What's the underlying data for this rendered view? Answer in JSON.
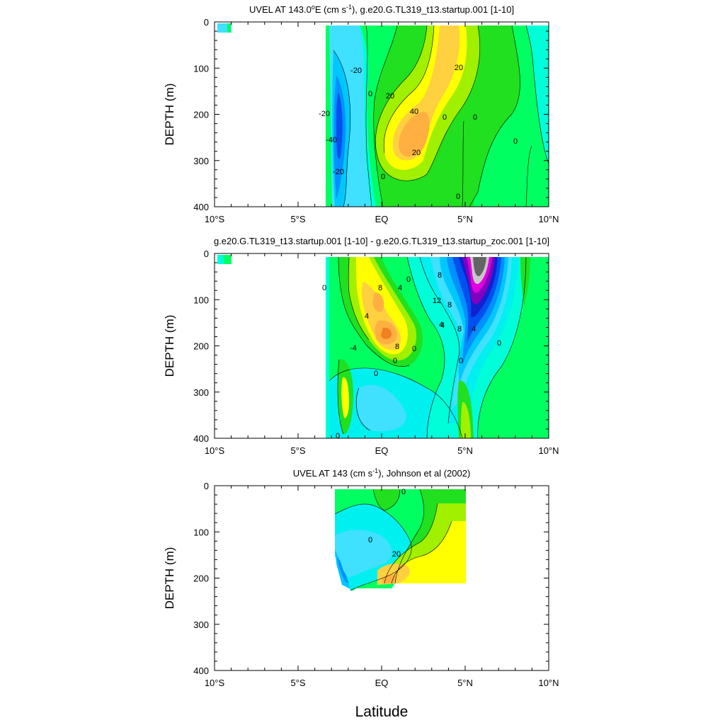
{
  "figure": {
    "xlabel": "Latitude",
    "colors": {
      "cyan_light": "#00FFD8",
      "cyan": "#00F0F0",
      "teal": "#40E0FF",
      "light_blue": "#00C8FF",
      "blue_mid": "#0090FF",
      "blue": "#0050F0",
      "blue_dark": "#1020D0",
      "purple": "#8000C0",
      "magenta": "#E000E0",
      "gray_light": "#C8C8C8",
      "gray_dark": "#646464",
      "green_bright": "#00FF60",
      "green": "#20E020",
      "yellow_green": "#A0F000",
      "yellow": "#FFFF00",
      "gold": "#FFD040",
      "orange": "#FFB040",
      "orange_dark": "#F08020"
    }
  },
  "chart_data": [
    {
      "type": "heatmap",
      "subtype": "contour",
      "title": "UVEL AT 143.0°E (cm s-1), g.e20.G.TL319_t13.startup.001 [1-10]",
      "title_parts": [
        "UVEL AT 143.0",
        "o",
        "E (cm s",
        "-1",
        "), g.e20.G.TL319_t13.startup.001 [1-10]"
      ],
      "ylabel": "DEPTH (m)",
      "xlim": [
        -10,
        10
      ],
      "ylim": [
        400,
        0
      ],
      "x_ticks": [
        "10°S",
        "5°S",
        "EQ",
        "5°N",
        "10°N"
      ],
      "y_ticks": [
        "0",
        "100",
        "200",
        "300",
        "400"
      ],
      "data_extent_lat": [
        -3.4,
        9.9
      ],
      "contour_labels": [
        "-20",
        "-20",
        "-40",
        "-20",
        "0",
        "20",
        "40",
        "20",
        "20",
        "0",
        "0",
        "0",
        "0",
        "0"
      ],
      "features": [
        {
          "name": "westward core",
          "lat": -2.7,
          "depth": 200,
          "value": -40
        },
        {
          "name": "eastward core",
          "lat": 0.8,
          "depth": 220,
          "value": 40
        }
      ]
    },
    {
      "type": "heatmap",
      "subtype": "contour",
      "title": "g.e20.G.TL319_t13.startup.001 [1-10] - g.e20.G.TL319_t13.startup_zoc.001 [1-10]",
      "ylabel": "DEPTH (m)",
      "xlim": [
        -10,
        10
      ],
      "ylim": [
        400,
        0
      ],
      "x_ticks": [
        "10°S",
        "5°S",
        "EQ",
        "5°N",
        "10°N"
      ],
      "y_ticks": [
        "0",
        "100",
        "200",
        "300",
        "400"
      ],
      "data_extent_lat": [
        -3.4,
        9.9
      ],
      "contour_labels": [
        "0",
        "8",
        "4",
        "0",
        "4",
        "8",
        "4",
        "8",
        "8",
        "12",
        "4",
        "8",
        "4",
        "0",
        "0",
        "0",
        "0",
        "-4",
        "0",
        "0"
      ],
      "features": [
        {
          "name": "positive core",
          "lat": 0.0,
          "depth": 170,
          "value": 12
        },
        {
          "name": "negative core",
          "lat": 5.0,
          "depth": 30,
          "value": -24
        }
      ]
    },
    {
      "type": "heatmap",
      "subtype": "contour",
      "title": "UVEL AT 143 (cm s-1), Johnson et al (2002)",
      "title_parts": [
        "UVEL AT 143 (cm s",
        "-1",
        "), Johnson et al (2002)"
      ],
      "ylabel": "DEPTH (m)",
      "xlabel": "Latitude",
      "xlim": [
        -10,
        10
      ],
      "ylim": [
        400,
        0
      ],
      "x_ticks": [
        "10°S",
        "5°S",
        "EQ",
        "5°N",
        "10°N"
      ],
      "y_ticks": [
        "0",
        "100",
        "200",
        "300",
        "400"
      ],
      "data_extent_lat": [
        -2.7,
        4.9
      ],
      "contour_labels": [
        "0",
        "0",
        "20"
      ],
      "features": [
        {
          "name": "eastward core",
          "lat": 0.3,
          "depth": 210,
          "value": 40
        }
      ]
    }
  ]
}
